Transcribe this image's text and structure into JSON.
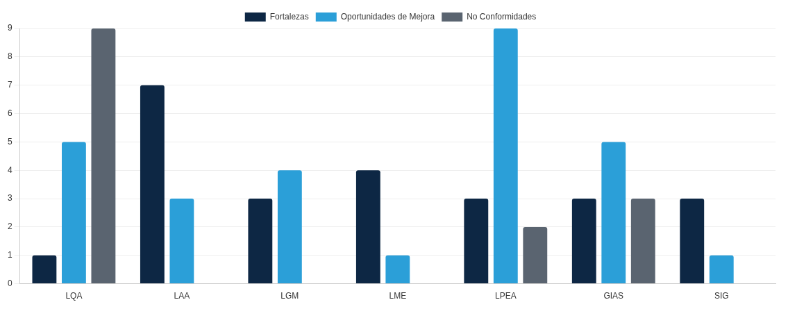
{
  "chart_data": {
    "type": "bar",
    "categories": [
      "LQA",
      "LAA",
      "LGM",
      "LME",
      "LPEA",
      "GIAS",
      "SIG"
    ],
    "series": [
      {
        "name": "Fortalezas",
        "color": "#0d2744",
        "values": [
          1,
          7,
          3,
          4,
          3,
          3,
          3
        ]
      },
      {
        "name": "Oportunidades de Mejora",
        "color": "#2b9fd8",
        "values": [
          5,
          3,
          4,
          1,
          9,
          5,
          1
        ]
      },
      {
        "name": "No Conformidades",
        "color": "#5a6470",
        "values": [
          9,
          0,
          0,
          0,
          2,
          3,
          0
        ]
      }
    ],
    "ylim": [
      0,
      9
    ],
    "yticks": [
      0,
      1,
      2,
      3,
      4,
      5,
      6,
      7,
      8,
      9
    ],
    "grid": "y",
    "legend": "top"
  }
}
